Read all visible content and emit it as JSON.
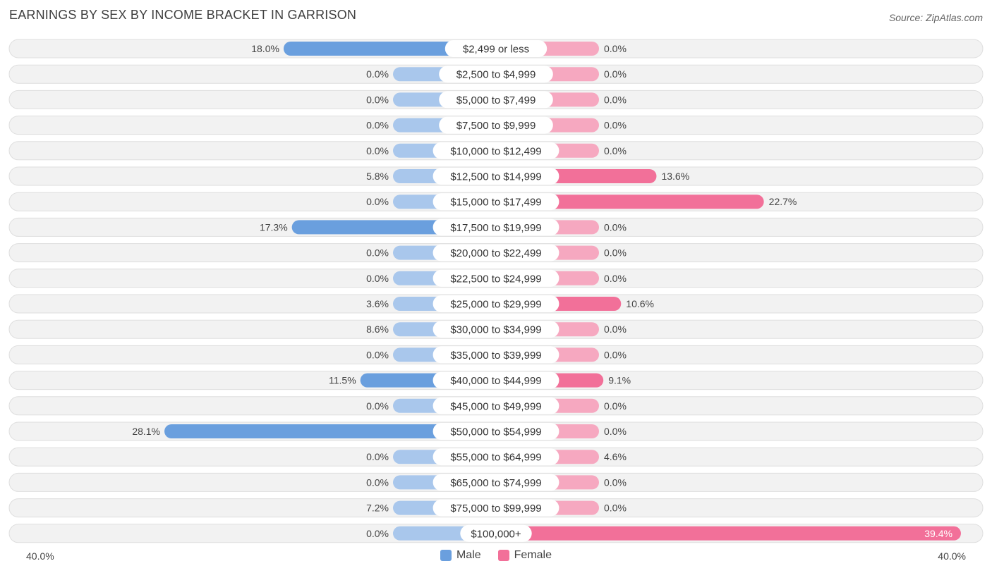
{
  "title": "EARNINGS BY SEX BY INCOME BRACKET IN GARRISON",
  "source": "Source: ZipAtlas.com",
  "legend": {
    "male": "Male",
    "female": "Female"
  },
  "axis": {
    "left": "40.0%",
    "right": "40.0%"
  },
  "colors": {
    "male_strong": "#6a9fde",
    "male_light": "#a9c7ec",
    "female_strong": "#f27099",
    "female_light": "#f6a8c0",
    "row_bg": "#f2f2f2",
    "row_border": "#dedede"
  },
  "chart_data": {
    "type": "bar",
    "orientation": "horizontal-diverging",
    "title": "EARNINGS BY SEX BY INCOME BRACKET IN GARRISON",
    "xlim": [
      -40,
      40
    ],
    "categories": [
      "$2,499 or less",
      "$2,500 to $4,999",
      "$5,000 to $7,499",
      "$7,500 to $9,999",
      "$10,000 to $12,499",
      "$12,500 to $14,999",
      "$15,000 to $17,499",
      "$17,500 to $19,999",
      "$20,000 to $22,499",
      "$22,500 to $24,999",
      "$25,000 to $29,999",
      "$30,000 to $34,999",
      "$35,000 to $39,999",
      "$40,000 to $44,999",
      "$45,000 to $49,999",
      "$50,000 to $54,999",
      "$55,000 to $64,999",
      "$65,000 to $74,999",
      "$75,000 to $99,999",
      "$100,000+"
    ],
    "series": [
      {
        "name": "Male",
        "values": [
          18.0,
          0.0,
          0.0,
          0.0,
          0.0,
          5.8,
          0.0,
          17.3,
          0.0,
          0.0,
          3.6,
          8.6,
          0.0,
          11.5,
          0.0,
          28.1,
          0.0,
          0.0,
          7.2,
          0.0
        ],
        "labels": [
          "18.0%",
          "0.0%",
          "0.0%",
          "0.0%",
          "0.0%",
          "5.8%",
          "0.0%",
          "17.3%",
          "0.0%",
          "0.0%",
          "3.6%",
          "8.6%",
          "0.0%",
          "11.5%",
          "0.0%",
          "28.1%",
          "0.0%",
          "0.0%",
          "7.2%",
          "0.0%"
        ]
      },
      {
        "name": "Female",
        "values": [
          0.0,
          0.0,
          0.0,
          0.0,
          0.0,
          13.6,
          22.7,
          0.0,
          0.0,
          0.0,
          10.6,
          0.0,
          0.0,
          9.1,
          0.0,
          0.0,
          4.6,
          0.0,
          0.0,
          39.4
        ],
        "labels": [
          "0.0%",
          "0.0%",
          "0.0%",
          "0.0%",
          "0.0%",
          "13.6%",
          "22.7%",
          "0.0%",
          "0.0%",
          "0.0%",
          "10.6%",
          "0.0%",
          "0.0%",
          "9.1%",
          "0.0%",
          "0.0%",
          "4.6%",
          "0.0%",
          "0.0%",
          "39.4%"
        ]
      }
    ]
  }
}
